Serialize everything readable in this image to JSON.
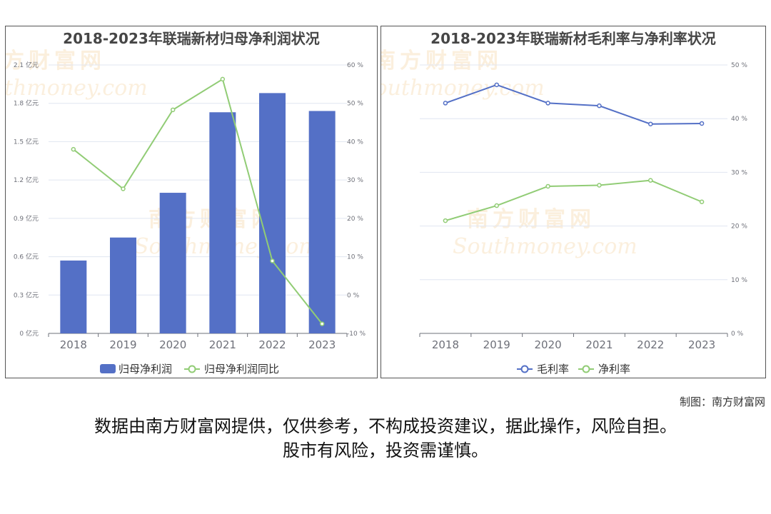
{
  "chart_data": [
    {
      "type": "bar",
      "title": "2018-2023年联瑞新材归母净利润状况",
      "categories": [
        "2018",
        "2019",
        "2020",
        "2021",
        "2022",
        "2023"
      ],
      "series": [
        {
          "name": "归母净利润",
          "type": "bar",
          "axis": "left",
          "values": [
            0.57,
            0.75,
            1.1,
            1.73,
            1.88,
            1.74
          ]
        },
        {
          "name": "归母净利润同比",
          "type": "line",
          "axis": "right",
          "values": [
            38.0,
            27.7,
            48.3,
            56.3,
            8.9,
            -7.5
          ]
        }
      ],
      "y_left": {
        "ticks": [
          "0 亿元",
          "0.3 亿元",
          "0.6 亿元",
          "0.9 亿元",
          "1.2 亿元",
          "1.5 亿元",
          "1.8 亿元",
          "2.1 亿元"
        ],
        "min": 0,
        "max": 2.1
      },
      "y_right": {
        "ticks": [
          "-10 %",
          "0 %",
          "10 %",
          "20 %",
          "30 %",
          "40 %",
          "50 %",
          "60 %"
        ],
        "min": -10,
        "max": 60
      },
      "grid": true,
      "legend": "bottom",
      "colors": {
        "bar": "#5470c6",
        "line": "#91cc75"
      }
    },
    {
      "type": "line",
      "title": "2018-2023年联瑞新材毛利率与净利率状况",
      "categories": [
        "2018",
        "2019",
        "2020",
        "2021",
        "2022",
        "2023"
      ],
      "series": [
        {
          "name": "毛利率",
          "values": [
            42.9,
            46.3,
            42.9,
            42.4,
            39.0,
            39.1
          ]
        },
        {
          "name": "净利率",
          "values": [
            21.0,
            23.8,
            27.4,
            27.6,
            28.5,
            24.5
          ]
        }
      ],
      "y_right": {
        "ticks": [
          "0 %",
          "10 %",
          "20 %",
          "30 %",
          "40 %",
          "50 %"
        ],
        "min": 0,
        "max": 50
      },
      "grid": true,
      "legend": "bottom",
      "colors": {
        "毛利率": "#5470c6",
        "净利率": "#91cc75"
      }
    }
  ],
  "watermark": {
    "brand_cn": "南方财富网",
    "brand_en": "Southmoney.com"
  },
  "footer": {
    "credit": "制图：南方财富网",
    "disclaimer_line1": "数据由南方财富网提供，仅供参考，不构成投资建议，据此操作，风险自担。",
    "disclaimer_line2": "股市有风险，投资需谨慎。"
  }
}
